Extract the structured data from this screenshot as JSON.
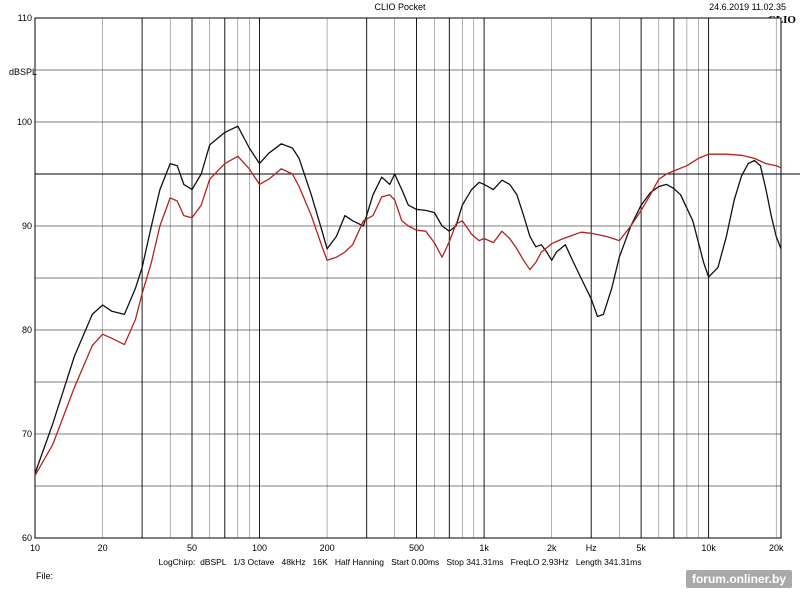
{
  "header": {
    "title": "CLIO Pocket",
    "timestamp": "24.6.2019 11.02.35",
    "logo": "CLIO"
  },
  "footer": {
    "params": "LogChirp:  dBSPL   1/3 Octave   48kHz   16K   Half Hanning   Start 0.00ms   Stop 341.31ms   FreqLO 2.93Hz   Length 341.31ms",
    "file_label": "File:"
  },
  "watermark": "forum.onliner.by",
  "chart_data": {
    "type": "line",
    "title": "",
    "xlabel": "Hz",
    "ylabel": "dBSPL",
    "xscale": "log",
    "xlim": [
      10,
      21000
    ],
    "ylim": [
      60,
      110
    ],
    "grid": true,
    "x_ticks": [
      {
        "value": 10,
        "label": "10"
      },
      {
        "value": 20,
        "label": "20"
      },
      {
        "value": 50,
        "label": "50"
      },
      {
        "value": 100,
        "label": "100"
      },
      {
        "value": 200,
        "label": "200"
      },
      {
        "value": 500,
        "label": "500"
      },
      {
        "value": 1000,
        "label": "1k"
      },
      {
        "value": 2000,
        "label": "2k"
      },
      {
        "value": 5000,
        "label": "5k"
      },
      {
        "value": 10000,
        "label": "10k"
      },
      {
        "value": 20000,
        "label": "20k"
      }
    ],
    "y_ticks": [
      {
        "value": 60,
        "label": "60"
      },
      {
        "value": 70,
        "label": "70"
      },
      {
        "value": 80,
        "label": "80"
      },
      {
        "value": 90,
        "label": "90"
      },
      {
        "value": 100,
        "label": "100"
      },
      {
        "value": 110,
        "label": "110"
      }
    ],
    "reference_line_y": 95,
    "colors": {
      "black_curve": "#111111",
      "red_curve": "#b3241b",
      "grid": "#000000"
    },
    "series": [
      {
        "color": "#111111",
        "points": [
          [
            10,
            66.2
          ],
          [
            12,
            71
          ],
          [
            15,
            77.5
          ],
          [
            18,
            81.5
          ],
          [
            20,
            82.4
          ],
          [
            22,
            81.8
          ],
          [
            25,
            81.5
          ],
          [
            28,
            84
          ],
          [
            30,
            86
          ],
          [
            33,
            90
          ],
          [
            36,
            93.5
          ],
          [
            40,
            96
          ],
          [
            43,
            95.8
          ],
          [
            46,
            94
          ],
          [
            50,
            93.5
          ],
          [
            55,
            95
          ],
          [
            60,
            97.8
          ],
          [
            70,
            99
          ],
          [
            80,
            99.6
          ],
          [
            90,
            97.5
          ],
          [
            100,
            96
          ],
          [
            110,
            97
          ],
          [
            125,
            97.9
          ],
          [
            140,
            97.5
          ],
          [
            150,
            96.5
          ],
          [
            170,
            93
          ],
          [
            190,
            89.5
          ],
          [
            200,
            87.8
          ],
          [
            220,
            89
          ],
          [
            240,
            91
          ],
          [
            260,
            90.5
          ],
          [
            290,
            90
          ],
          [
            320,
            93
          ],
          [
            350,
            94.7
          ],
          [
            380,
            94
          ],
          [
            400,
            95
          ],
          [
            430,
            93.5
          ],
          [
            460,
            92
          ],
          [
            500,
            91.6
          ],
          [
            550,
            91.5
          ],
          [
            600,
            91.3
          ],
          [
            650,
            90
          ],
          [
            700,
            89.5
          ],
          [
            750,
            90
          ],
          [
            800,
            92
          ],
          [
            880,
            93.5
          ],
          [
            950,
            94.2
          ],
          [
            1000,
            94
          ],
          [
            1100,
            93.5
          ],
          [
            1200,
            94.4
          ],
          [
            1300,
            94
          ],
          [
            1400,
            93
          ],
          [
            1500,
            91
          ],
          [
            1600,
            89
          ],
          [
            1700,
            88
          ],
          [
            1800,
            88.2
          ],
          [
            1900,
            87.5
          ],
          [
            2000,
            86.7
          ],
          [
            2100,
            87.5
          ],
          [
            2300,
            88.2
          ],
          [
            2500,
            86.5
          ],
          [
            2700,
            85
          ],
          [
            3000,
            83
          ],
          [
            3200,
            81.3
          ],
          [
            3400,
            81.5
          ],
          [
            3700,
            84
          ],
          [
            4000,
            87
          ],
          [
            4500,
            90
          ],
          [
            5000,
            92
          ],
          [
            5500,
            93.2
          ],
          [
            6000,
            93.8
          ],
          [
            6500,
            94
          ],
          [
            7000,
            93.6
          ],
          [
            7500,
            93
          ],
          [
            8500,
            90.5
          ],
          [
            9500,
            86.5
          ],
          [
            10000,
            85.1
          ],
          [
            11000,
            86
          ],
          [
            12000,
            89
          ],
          [
            13000,
            92.5
          ],
          [
            14000,
            94.8
          ],
          [
            15000,
            96
          ],
          [
            16000,
            96.3
          ],
          [
            17000,
            95.8
          ],
          [
            18000,
            93.5
          ],
          [
            19000,
            91
          ],
          [
            20000,
            89
          ],
          [
            21000,
            87.8
          ]
        ]
      },
      {
        "color": "#b3241b",
        "points": [
          [
            10,
            66
          ],
          [
            12,
            69
          ],
          [
            15,
            74.5
          ],
          [
            18,
            78.5
          ],
          [
            20,
            79.6
          ],
          [
            22,
            79.2
          ],
          [
            25,
            78.6
          ],
          [
            28,
            81
          ],
          [
            30,
            83.5
          ],
          [
            33,
            86.5
          ],
          [
            36,
            90
          ],
          [
            40,
            92.7
          ],
          [
            43,
            92.4
          ],
          [
            46,
            91
          ],
          [
            50,
            90.8
          ],
          [
            55,
            92
          ],
          [
            60,
            94.5
          ],
          [
            70,
            96
          ],
          [
            80,
            96.7
          ],
          [
            90,
            95.5
          ],
          [
            100,
            94
          ],
          [
            110,
            94.5
          ],
          [
            125,
            95.5
          ],
          [
            140,
            95
          ],
          [
            150,
            93.8
          ],
          [
            170,
            91
          ],
          [
            190,
            88
          ],
          [
            200,
            86.7
          ],
          [
            220,
            87
          ],
          [
            240,
            87.5
          ],
          [
            260,
            88.2
          ],
          [
            290,
            90.5
          ],
          [
            320,
            91
          ],
          [
            350,
            92.8
          ],
          [
            380,
            93
          ],
          [
            400,
            92.5
          ],
          [
            430,
            90.5
          ],
          [
            460,
            90
          ],
          [
            500,
            89.6
          ],
          [
            550,
            89.5
          ],
          [
            600,
            88.4
          ],
          [
            650,
            87
          ],
          [
            700,
            88.5
          ],
          [
            750,
            90.2
          ],
          [
            800,
            90.5
          ],
          [
            880,
            89.2
          ],
          [
            950,
            88.6
          ],
          [
            1000,
            88.8
          ],
          [
            1100,
            88.4
          ],
          [
            1200,
            89.5
          ],
          [
            1300,
            88.8
          ],
          [
            1400,
            87.8
          ],
          [
            1500,
            86.7
          ],
          [
            1600,
            85.8
          ],
          [
            1700,
            86.5
          ],
          [
            1800,
            87.5
          ],
          [
            1900,
            87.9
          ],
          [
            2000,
            88.3
          ],
          [
            2200,
            88.7
          ],
          [
            2400,
            89
          ],
          [
            2700,
            89.4
          ],
          [
            3000,
            89.3
          ],
          [
            3500,
            89
          ],
          [
            4000,
            88.6
          ],
          [
            4500,
            90
          ],
          [
            5000,
            91.5
          ],
          [
            5500,
            93
          ],
          [
            6000,
            94.5
          ],
          [
            6500,
            95
          ],
          [
            7000,
            95.3
          ],
          [
            8000,
            95.8
          ],
          [
            9000,
            96.5
          ],
          [
            10000,
            96.9
          ],
          [
            12000,
            96.9
          ],
          [
            14000,
            96.8
          ],
          [
            16000,
            96.5
          ],
          [
            18000,
            96
          ],
          [
            20000,
            95.8
          ],
          [
            21000,
            95.6
          ]
        ]
      }
    ]
  }
}
